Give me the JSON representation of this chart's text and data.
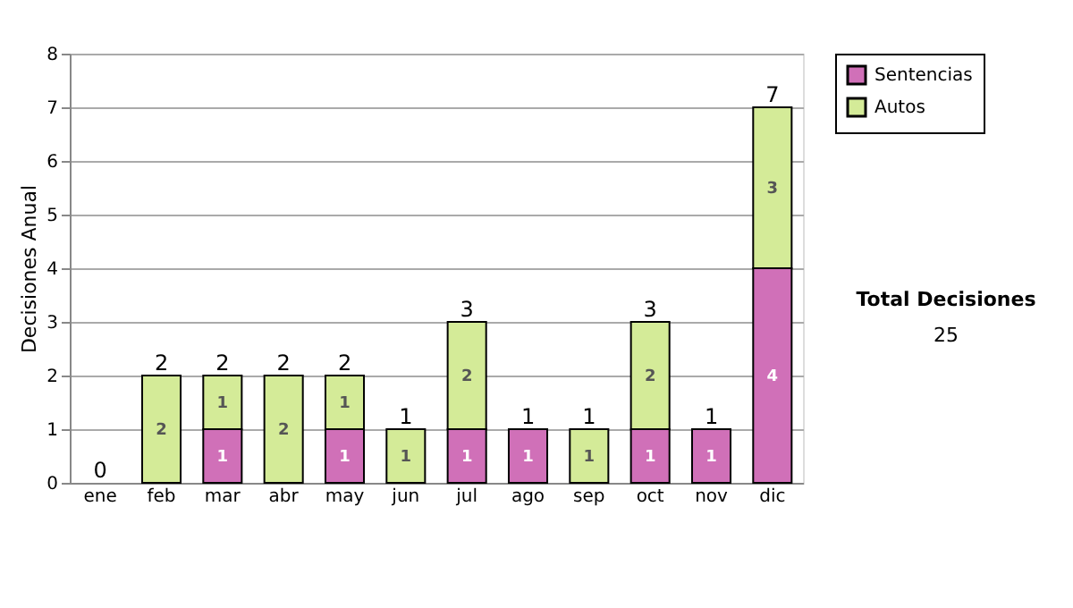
{
  "chart_data": {
    "type": "bar",
    "stacked": true,
    "ylabel": "Decisiones Anual",
    "categories": [
      "ene",
      "feb",
      "mar",
      "abr",
      "may",
      "jun",
      "jul",
      "ago",
      "sep",
      "oct",
      "nov",
      "dic"
    ],
    "series": [
      {
        "name": "Sentencias",
        "color": "#d070b8",
        "values": [
          0,
          0,
          1,
          0,
          1,
          0,
          1,
          1,
          0,
          1,
          1,
          4
        ],
        "value_labels": [
          null,
          null,
          "1",
          null,
          "1",
          null,
          "1",
          "1",
          null,
          "1",
          "1",
          "4"
        ]
      },
      {
        "name": "Autos",
        "color": "#d4eb98",
        "values": [
          0,
          2,
          1,
          2,
          1,
          1,
          2,
          0,
          1,
          2,
          0,
          3
        ],
        "value_labels": [
          null,
          "2",
          "1",
          "2",
          "1",
          "1",
          "2",
          null,
          "1",
          "2",
          null,
          "3"
        ]
      }
    ],
    "totals": [
      "0",
      "2",
      "2",
      "2",
      "2",
      "1",
      "3",
      "1",
      "1",
      "3",
      "1",
      "7"
    ],
    "ylim": [
      0,
      8
    ],
    "yticks": [
      0,
      1,
      2,
      3,
      4,
      5,
      6,
      7,
      8
    ],
    "grid": "y",
    "legend": "right",
    "annotations": [
      "Total Decisiones",
      "25"
    ]
  }
}
